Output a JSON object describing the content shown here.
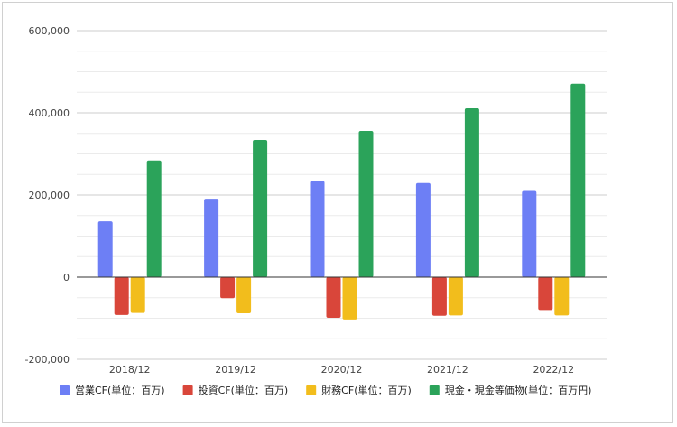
{
  "chart_data": {
    "type": "bar",
    "categories": [
      "2018/12",
      "2019/12",
      "2020/12",
      "2021/12",
      "2022/12"
    ],
    "series": [
      {
        "name": "営業CF(単位：百万)",
        "color": "#6d7ff5",
        "values": [
          136000,
          191000,
          234000,
          229000,
          210000
        ]
      },
      {
        "name": "投資CF(単位：百万)",
        "color": "#d9463a",
        "values": [
          -92000,
          -51000,
          -99000,
          -94000,
          -80000
        ]
      },
      {
        "name": "財務CF(単位：百万)",
        "color": "#f2bd1c",
        "values": [
          -87000,
          -88000,
          -103000,
          -93000,
          -93000
        ]
      },
      {
        "name": "現金・現金等価物(単位：百万円)",
        "color": "#2ba35a",
        "values": [
          284000,
          334000,
          356000,
          411000,
          471000
        ]
      }
    ],
    "y_ticks": [
      "600,000",
      "400,000",
      "200,000",
      "0",
      "-200,000"
    ],
    "ylim": [
      -200000,
      600000
    ],
    "grid": true,
    "legend_position": "bottom"
  }
}
